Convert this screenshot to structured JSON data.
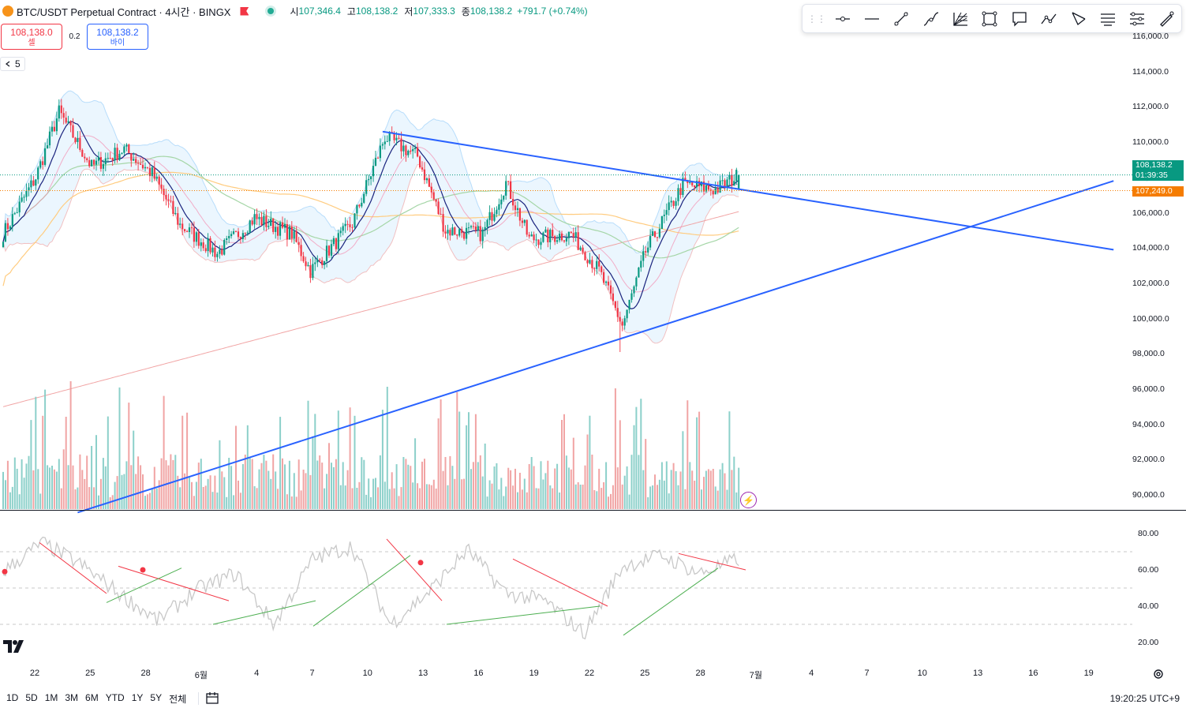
{
  "header": {
    "title": "BTC/USDT Perpetual Contract · 4시간 · BINGX",
    "open_label": "시",
    "open": "107,346.4",
    "high_label": "고",
    "high": "108,138.2",
    "low_label": "저",
    "low": "107,333.3",
    "close_label": "종",
    "close": "108,138.2",
    "change": "+791.7 (+0.74%)"
  },
  "trade": {
    "sell_price": "108,138.0",
    "sell_label": "셀",
    "spread": "0.2",
    "buy_price": "108,138.2",
    "buy_label": "바이"
  },
  "indicator_tag": {
    "value": "5"
  },
  "toolbar": {
    "tools": [
      "horizontal-ray-icon",
      "horizontal-line-icon",
      "trend-line-icon",
      "brush-icon",
      "fib-fan-icon",
      "rectangle-icon",
      "callout-icon",
      "polyline-icon",
      "angle-icon",
      "list-icon",
      "settings-list-icon",
      "pencil-icon"
    ]
  },
  "price_axis": {
    "labels": [
      "116,000.0",
      "114,000.0",
      "112,000.0",
      "110,000.0",
      "108,000.0",
      "106,000.0",
      "104,000.0",
      "102,000.0",
      "100,000.0",
      "98,000.0",
      "96,000.0",
      "94,000.0",
      "92,000.0",
      "90,000.0"
    ],
    "last_price": "108,138.2",
    "countdown": "01:39:35",
    "last_price_color": "#089981",
    "prev_price": "107,249.0",
    "prev_price_color": "#f57c00"
  },
  "rsi_axis": {
    "labels": [
      "80.00",
      "60.00",
      "40.00",
      "20.00"
    ]
  },
  "time_axis": {
    "labels": [
      "22",
      "25",
      "28",
      "6월",
      "4",
      "7",
      "10",
      "13",
      "16",
      "19",
      "22",
      "25",
      "28",
      "7월",
      "4",
      "7",
      "10",
      "13",
      "16",
      "19"
    ]
  },
  "bottom_bar": {
    "ranges": [
      "1D",
      "5D",
      "1M",
      "3M",
      "6M",
      "YTD",
      "1Y",
      "5Y",
      "전체"
    ],
    "clock": "19:20:25 UTC+9"
  },
  "colors": {
    "up": "#089981",
    "down": "#f23645",
    "trendline": "#2962ff",
    "bb_fill": "#e3f2fd",
    "ma_dark": "#1a237e"
  },
  "chart_data": {
    "type": "candlestick",
    "symbol": "BTC/USDT Perpetual Contract",
    "interval": "4시간",
    "exchange": "BINGX",
    "ylim": [
      89000,
      117000
    ],
    "anchors": [
      {
        "t": 0,
        "p": 104800
      },
      {
        "t": 14,
        "p": 108000
      },
      {
        "t": 24,
        "p": 111700
      },
      {
        "t": 38,
        "p": 108600
      },
      {
        "t": 52,
        "p": 109600
      },
      {
        "t": 64,
        "p": 108200
      },
      {
        "t": 76,
        "p": 105300
      },
      {
        "t": 92,
        "p": 103700
      },
      {
        "t": 108,
        "p": 105700
      },
      {
        "t": 124,
        "p": 104800
      },
      {
        "t": 132,
        "p": 102700
      },
      {
        "t": 150,
        "p": 105400
      },
      {
        "t": 164,
        "p": 110300
      },
      {
        "t": 178,
        "p": 109200
      },
      {
        "t": 190,
        "p": 105000
      },
      {
        "t": 206,
        "p": 104800
      },
      {
        "t": 216,
        "p": 107700
      },
      {
        "t": 226,
        "p": 104500
      },
      {
        "t": 244,
        "p": 104800
      },
      {
        "t": 256,
        "p": 102700
      },
      {
        "t": 266,
        "p": 99600
      },
      {
        "t": 276,
        "p": 103800
      },
      {
        "t": 292,
        "p": 107600
      },
      {
        "t": 306,
        "p": 107300
      },
      {
        "t": 316,
        "p": 108138.2
      }
    ],
    "trendlines": [
      {
        "from": [
          163,
          110600
        ],
        "to": [
          477,
          103900
        ]
      },
      {
        "from": [
          32,
          89000
        ],
        "to": [
          477,
          107800
        ]
      }
    ],
    "rsi": {
      "ylim": [
        10,
        90
      ],
      "levels": [
        70,
        50,
        30
      ],
      "values_approx": [
        59,
        75,
        63,
        47,
        32,
        49,
        58,
        30,
        66,
        73,
        30,
        48,
        71,
        47,
        43,
        25,
        62,
        68,
        58,
        66
      ]
    }
  }
}
